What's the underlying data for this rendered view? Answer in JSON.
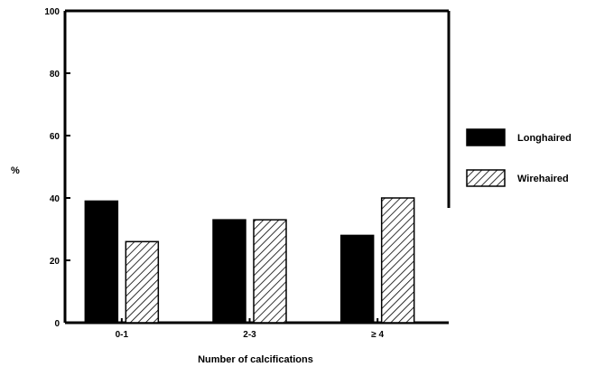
{
  "chart_data": {
    "type": "bar",
    "categories": [
      "0-1",
      "2-3",
      "≥ 4"
    ],
    "series": [
      {
        "name": "Longhaired",
        "values": [
          39,
          33,
          28
        ],
        "fill": "solid"
      },
      {
        "name": "Wirehaired",
        "values": [
          26,
          33,
          40
        ],
        "fill": "hatched"
      }
    ],
    "xlabel": "Number of calcifications",
    "ylabel": "%",
    "ylim": [
      0,
      100
    ],
    "yticks": [
      0,
      20,
      40,
      60,
      80,
      100
    ],
    "grid": false,
    "legend_position": "right",
    "colors": {
      "bar": "#000000",
      "background": "#ffffff"
    }
  }
}
